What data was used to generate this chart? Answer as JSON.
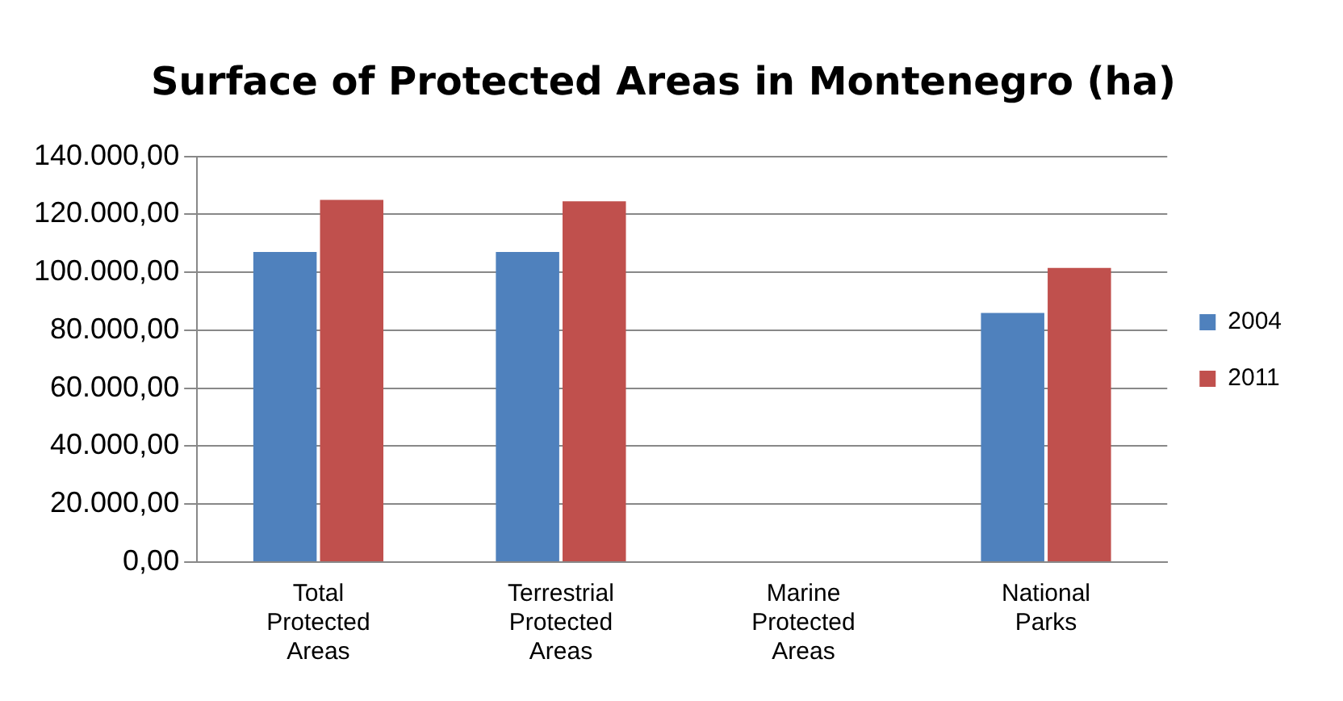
{
  "chart_data": {
    "type": "bar",
    "title": "Surface of Protected Areas in Montenegro (ha)",
    "categories": [
      "Total Protected Areas",
      "Terrestrial Protected Areas",
      "Marine Protected Areas",
      "National Parks"
    ],
    "series": [
      {
        "name": "2004",
        "color": "#4f81bd",
        "values": [
          107000,
          107000,
          0,
          86000
        ]
      },
      {
        "name": "2011",
        "color": "#c0504d",
        "values": [
          125000,
          124500,
          0,
          101500
        ]
      }
    ],
    "ylim": [
      0,
      140000
    ],
    "yticks": [
      {
        "value": 0,
        "label": "0,00"
      },
      {
        "value": 20000,
        "label": "20.000,00"
      },
      {
        "value": 40000,
        "label": "40.000,00"
      },
      {
        "value": 60000,
        "label": "60.000,00"
      },
      {
        "value": 80000,
        "label": "80.000,00"
      },
      {
        "value": 100000,
        "label": "100.000,00"
      },
      {
        "value": 120000,
        "label": "120.000,00"
      },
      {
        "value": 140000,
        "label": "140.000,00"
      }
    ],
    "grid": "y",
    "legend": "right"
  }
}
